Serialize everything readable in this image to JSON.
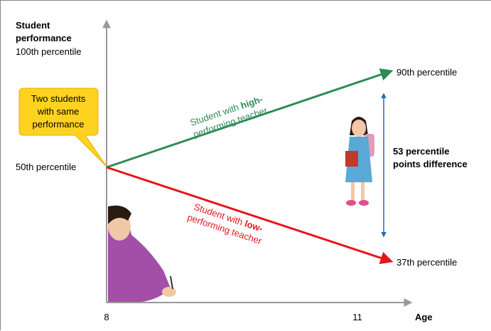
{
  "y_axis": {
    "title_lines": [
      "Student",
      "performance"
    ],
    "top_label": "100th percentile",
    "mid_label": "50th percentile"
  },
  "x_axis": {
    "start_label": "8",
    "end_label": "11",
    "title": "Age"
  },
  "callout": {
    "lines": [
      "Two students",
      "with same",
      "performance"
    ]
  },
  "high_line": {
    "label_line1": "Student with ",
    "label_bold": "high-",
    "label_line2": "performing teacher",
    "end_label": "90th percentile"
  },
  "low_line": {
    "label_line1": "Student with ",
    "label_bold": "low-",
    "label_line2": "performing teacher",
    "end_label": "37th percentile"
  },
  "difference": {
    "lines": [
      "53 percentile",
      "points difference"
    ]
  }
}
